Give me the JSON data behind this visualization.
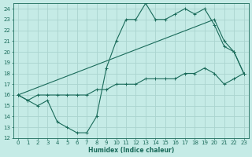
{
  "xlabel": "Humidex (Indice chaleur)",
  "bg_color": "#c5ebe6",
  "grid_color": "#aad4cf",
  "line_color": "#1a6b5a",
  "xlim": [
    -0.5,
    23.5
  ],
  "ylim": [
    12,
    24.5
  ],
  "yticks": [
    12,
    13,
    14,
    15,
    16,
    17,
    18,
    19,
    20,
    21,
    22,
    23,
    24
  ],
  "xticks": [
    0,
    1,
    2,
    3,
    4,
    5,
    6,
    7,
    8,
    9,
    10,
    11,
    12,
    13,
    14,
    15,
    16,
    17,
    18,
    19,
    20,
    21,
    22,
    23
  ],
  "line1_x": [
    0,
    1,
    2,
    3,
    4,
    5,
    6,
    7,
    8,
    9,
    10,
    11,
    12,
    13,
    14,
    15,
    16,
    17,
    18,
    19,
    20,
    21,
    22,
    23
  ],
  "line1_y": [
    16,
    15.5,
    15,
    15.5,
    13.5,
    13,
    12.5,
    12.5,
    14,
    18.5,
    21,
    23,
    23,
    24.5,
    23,
    23,
    23.5,
    24,
    23.5,
    24,
    22.5,
    20.5,
    20,
    18
  ],
  "line2_x": [
    0,
    1,
    2,
    3,
    4,
    5,
    6,
    7,
    8,
    9,
    10,
    11,
    12,
    13,
    14,
    15,
    16,
    17,
    18,
    19,
    20,
    21,
    22,
    23
  ],
  "line2_y": [
    16,
    15.5,
    16,
    16,
    16,
    16,
    16,
    16,
    16.5,
    16.5,
    17,
    17,
    17,
    17.5,
    17.5,
    17.5,
    17.5,
    18,
    18,
    18.5,
    18,
    17,
    17.5,
    18
  ],
  "line3_x": [
    0,
    20,
    21,
    22,
    23
  ],
  "line3_y": [
    16,
    23,
    21,
    20,
    18
  ]
}
